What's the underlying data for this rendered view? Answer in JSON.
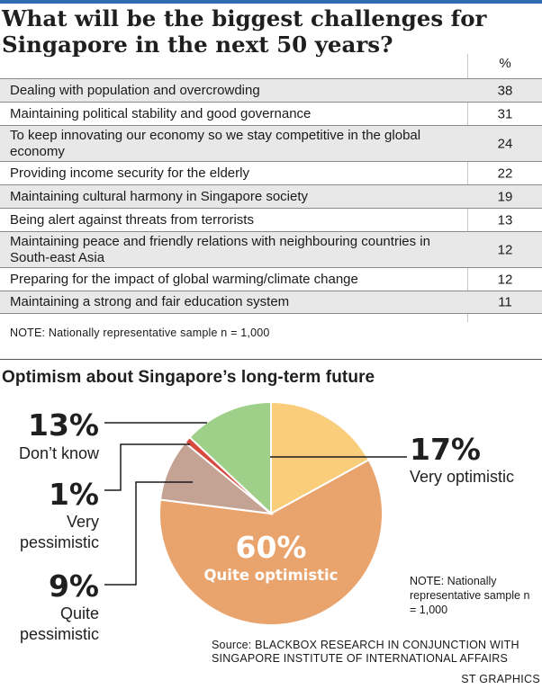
{
  "title": "What will be the biggest challenges for Singapore in the next 50 years?",
  "table_header": "%",
  "table_note": "NOTE: Nationally representative sample n = 1,000",
  "pie_note": "NOTE: Nationally representative sample n = 1,000",
  "source": "Source: BLACKBOX RESEARCH IN CONJUNCTION WITH SINGAPORE INSTITUTE OF INTERNATIONAL AFFAIRS",
  "credit": "ST GRAPHICS",
  "chart_data": [
    {
      "type": "table",
      "title": "What will be the biggest challenges for Singapore in the next 50 years?",
      "columns": [
        "",
        "%"
      ],
      "rows": [
        {
          "label": "Dealing with population and overcrowding",
          "value": 38
        },
        {
          "label": "Maintaining political stability and good governance",
          "value": 31
        },
        {
          "label": "To keep innovating our economy so we stay competitive in the global economy",
          "value": 24
        },
        {
          "label": "Providing income security for the elderly",
          "value": 22
        },
        {
          "label": "Maintaining cultural harmony in Singapore society",
          "value": 19
        },
        {
          "label": "Being alert against threats from terrorists",
          "value": 13
        },
        {
          "label": "Maintaining peace and friendly relations with neighbouring countries in South-east Asia",
          "value": 12
        },
        {
          "label": "Preparing for the impact of global warming/climate change",
          "value": 12
        },
        {
          "label": "Maintaining a strong and fair education system",
          "value": 11
        }
      ]
    },
    {
      "type": "pie",
      "title": "Optimism about Singapore’s long-term future",
      "slices": [
        {
          "label": "Very optimistic",
          "value": 17,
          "display": "17%",
          "color": "#f9cd7a"
        },
        {
          "label": "Quite optimistic",
          "value": 60,
          "display": "60%",
          "color": "#e9a36d"
        },
        {
          "label": "Quite pessimistic",
          "value": 9,
          "display": "9%",
          "color": "#c4a294"
        },
        {
          "label": "Very pessimistic",
          "value": 1,
          "display": "1%",
          "color": "#d8493e"
        },
        {
          "label": "Don’t know",
          "value": 13,
          "display": "13%",
          "color": "#9fd08a"
        }
      ]
    }
  ]
}
